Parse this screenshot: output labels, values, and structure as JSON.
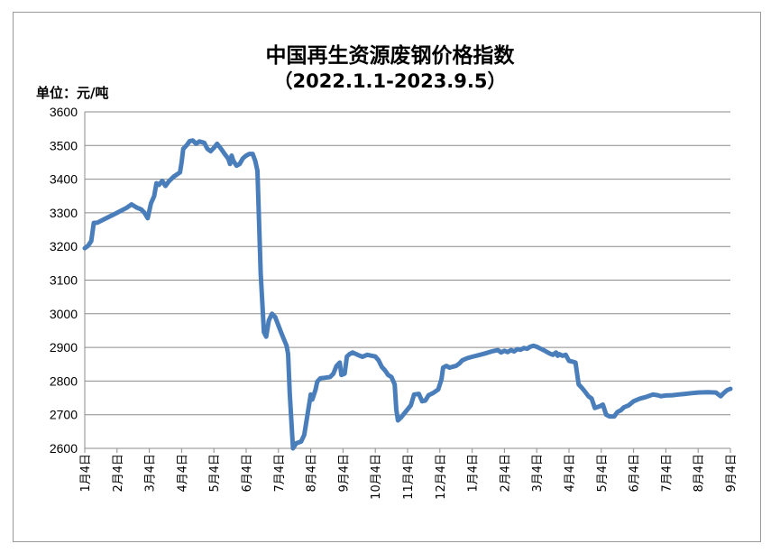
{
  "chart_data": {
    "type": "line",
    "title": "中国再生资源废钢价格指数",
    "subtitle": "（2022.1.1-2023.9.5）",
    "ylabel": "单位：元/吨",
    "xlabel": "",
    "ylim": [
      2600,
      3600
    ],
    "yticks": [
      2600,
      2700,
      2800,
      2900,
      3000,
      3100,
      3200,
      3300,
      3400,
      3500,
      3600
    ],
    "categories": [
      "1月4日",
      "2月4日",
      "3月4日",
      "4月4日",
      "5月4日",
      "6月4日",
      "7月4日",
      "8月4日",
      "9月4日",
      "10月4日",
      "11月4日",
      "12月4日",
      "1月4日",
      "2月4日",
      "3月4日",
      "4月4日",
      "5月4日",
      "6月4日",
      "7月4日",
      "8月4日",
      "9月4日"
    ],
    "grid": true,
    "legend": "none",
    "line_color": "#4a7ebb",
    "series": [
      {
        "values": [
          [
            0.0,
            3195
          ],
          [
            0.1,
            3202
          ],
          [
            0.2,
            3216
          ],
          [
            0.28,
            3270
          ],
          [
            0.4,
            3271
          ],
          [
            0.6,
            3281
          ],
          [
            1.0,
            3300
          ],
          [
            1.3,
            3315
          ],
          [
            1.45,
            3325
          ],
          [
            1.6,
            3316
          ],
          [
            1.75,
            3310
          ],
          [
            1.85,
            3300
          ],
          [
            1.95,
            3284
          ],
          [
            2.05,
            3328
          ],
          [
            2.15,
            3350
          ],
          [
            2.22,
            3388
          ],
          [
            2.3,
            3383
          ],
          [
            2.4,
            3395
          ],
          [
            2.5,
            3380
          ],
          [
            2.6,
            3393
          ],
          [
            2.75,
            3407
          ],
          [
            2.95,
            3420
          ],
          [
            3.0,
            3450
          ],
          [
            3.05,
            3490
          ],
          [
            3.15,
            3500
          ],
          [
            3.25,
            3513
          ],
          [
            3.35,
            3515
          ],
          [
            3.45,
            3505
          ],
          [
            3.55,
            3512
          ],
          [
            3.7,
            3508
          ],
          [
            3.8,
            3490
          ],
          [
            3.9,
            3483
          ],
          [
            4.0,
            3493
          ],
          [
            4.1,
            3505
          ],
          [
            4.2,
            3493
          ],
          [
            4.35,
            3473
          ],
          [
            4.45,
            3460
          ],
          [
            4.5,
            3445
          ],
          [
            4.55,
            3470
          ],
          [
            4.6,
            3455
          ],
          [
            4.7,
            3440
          ],
          [
            4.8,
            3445
          ],
          [
            4.9,
            3462
          ],
          [
            5.0,
            3470
          ],
          [
            5.1,
            3475
          ],
          [
            5.2,
            3475
          ],
          [
            5.28,
            3455
          ],
          [
            5.35,
            3425
          ],
          [
            5.45,
            3120
          ],
          [
            5.55,
            2945
          ],
          [
            5.62,
            2932
          ],
          [
            5.7,
            2980
          ],
          [
            5.8,
            3000
          ],
          [
            5.9,
            2990
          ],
          [
            6.1,
            2940
          ],
          [
            6.25,
            2905
          ],
          [
            6.3,
            2880
          ],
          [
            6.35,
            2765
          ],
          [
            6.45,
            2600
          ],
          [
            6.55,
            2615
          ],
          [
            6.7,
            2620
          ],
          [
            6.8,
            2640
          ],
          [
            6.9,
            2700
          ],
          [
            7.0,
            2760
          ],
          [
            7.05,
            2745
          ],
          [
            7.15,
            2775
          ],
          [
            7.2,
            2798
          ],
          [
            7.3,
            2808
          ],
          [
            7.45,
            2810
          ],
          [
            7.6,
            2812
          ],
          [
            7.7,
            2822
          ],
          [
            7.8,
            2845
          ],
          [
            7.9,
            2855
          ],
          [
            7.95,
            2818
          ],
          [
            8.05,
            2822
          ],
          [
            8.12,
            2873
          ],
          [
            8.2,
            2880
          ],
          [
            8.3,
            2885
          ],
          [
            8.45,
            2878
          ],
          [
            8.6,
            2872
          ],
          [
            8.75,
            2878
          ],
          [
            8.9,
            2875
          ],
          [
            9.0,
            2873
          ],
          [
            9.1,
            2862
          ],
          [
            9.2,
            2842
          ],
          [
            9.3,
            2832
          ],
          [
            9.4,
            2818
          ],
          [
            9.5,
            2812
          ],
          [
            9.6,
            2790
          ],
          [
            9.65,
            2715
          ],
          [
            9.7,
            2683
          ],
          [
            9.8,
            2692
          ],
          [
            9.95,
            2710
          ],
          [
            10.1,
            2728
          ],
          [
            10.2,
            2760
          ],
          [
            10.35,
            2762
          ],
          [
            10.45,
            2740
          ],
          [
            10.55,
            2742
          ],
          [
            10.65,
            2758
          ],
          [
            10.8,
            2765
          ],
          [
            10.95,
            2775
          ],
          [
            11.05,
            2805
          ],
          [
            11.1,
            2840
          ],
          [
            11.2,
            2845
          ],
          [
            11.3,
            2840
          ],
          [
            11.5,
            2845
          ],
          [
            11.6,
            2852
          ],
          [
            11.7,
            2862
          ],
          [
            11.85,
            2868
          ],
          [
            12.0,
            2872
          ],
          [
            12.2,
            2877
          ],
          [
            12.4,
            2882
          ],
          [
            12.6,
            2888
          ],
          [
            12.8,
            2892
          ],
          [
            12.9,
            2885
          ],
          [
            13.0,
            2890
          ],
          [
            13.1,
            2886
          ],
          [
            13.2,
            2892
          ],
          [
            13.3,
            2888
          ],
          [
            13.4,
            2895
          ],
          [
            13.5,
            2893
          ],
          [
            13.6,
            2898
          ],
          [
            13.7,
            2896
          ],
          [
            13.8,
            2902
          ],
          [
            13.9,
            2905
          ],
          [
            14.0,
            2902
          ],
          [
            14.1,
            2897
          ],
          [
            14.25,
            2890
          ],
          [
            14.4,
            2882
          ],
          [
            14.5,
            2878
          ],
          [
            14.6,
            2885
          ],
          [
            14.65,
            2875
          ],
          [
            14.7,
            2880
          ],
          [
            14.8,
            2875
          ],
          [
            14.9,
            2878
          ],
          [
            15.0,
            2860
          ],
          [
            15.1,
            2858
          ],
          [
            15.2,
            2855
          ],
          [
            15.3,
            2790
          ],
          [
            15.4,
            2780
          ],
          [
            15.5,
            2768
          ],
          [
            15.6,
            2755
          ],
          [
            15.7,
            2748
          ],
          [
            15.8,
            2720
          ],
          [
            15.95,
            2725
          ],
          [
            16.05,
            2730
          ],
          [
            16.15,
            2700
          ],
          [
            16.25,
            2695
          ],
          [
            16.4,
            2695
          ],
          [
            16.5,
            2708
          ],
          [
            16.6,
            2713
          ],
          [
            16.7,
            2722
          ],
          [
            16.85,
            2728
          ],
          [
            17.0,
            2740
          ],
          [
            17.2,
            2748
          ],
          [
            17.4,
            2753
          ],
          [
            17.6,
            2760
          ],
          [
            17.75,
            2758
          ],
          [
            17.85,
            2755
          ],
          [
            18.0,
            2757
          ],
          [
            18.2,
            2758
          ],
          [
            18.4,
            2760
          ],
          [
            18.6,
            2762
          ],
          [
            18.8,
            2764
          ],
          [
            19.0,
            2766
          ],
          [
            19.3,
            2767
          ],
          [
            19.55,
            2766
          ],
          [
            19.7,
            2755
          ],
          [
            19.8,
            2765
          ],
          [
            19.9,
            2773
          ],
          [
            20.0,
            2777
          ]
        ]
      }
    ]
  }
}
